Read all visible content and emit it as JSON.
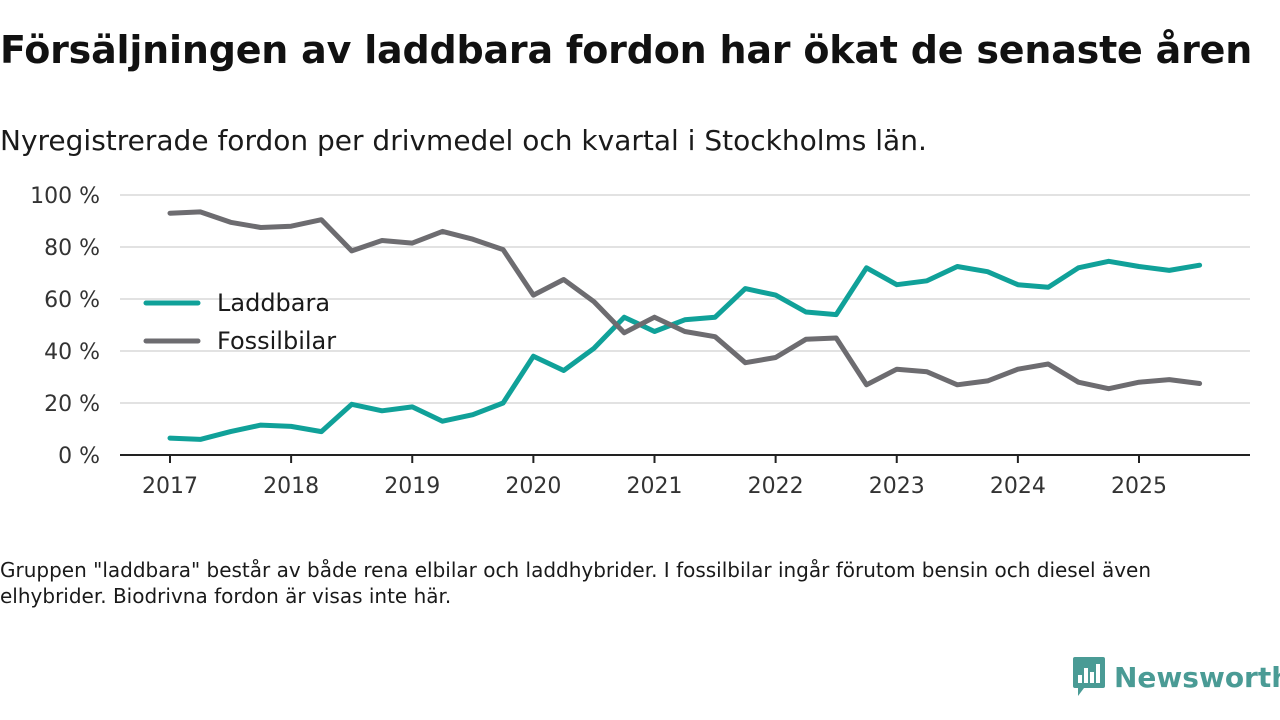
{
  "header": {
    "title": "Försäljningen av laddbara fordon har ökat de senaste åren",
    "subtitle": "Nyregistrerade fordon per drivmedel och kvartal i Stockholms län."
  },
  "footnote": "Gruppen \"laddbara\" består av både rena elbilar och laddhybrider. I fossilbilar ingår förutom bensin och diesel även elhybrider. Biodrivna fordon är visas inte här.",
  "brand": {
    "name": "Newsworthy",
    "icon": "newsworthy-logo-icon",
    "color": "#4a9b95"
  },
  "chart_data": {
    "type": "line",
    "x_start": 2017.0,
    "x_step": 0.25,
    "xlim": [
      2016.6,
      2026.0
    ],
    "ylim": [
      0,
      100
    ],
    "yticks": [
      0,
      20,
      40,
      60,
      80,
      100
    ],
    "ytick_labels": [
      "0 %",
      "20 %",
      "40 %",
      "60 %",
      "80 %",
      "100 %"
    ],
    "xticks": [
      2017,
      2018,
      2019,
      2020,
      2021,
      2022,
      2023,
      2024,
      2025
    ],
    "xtick_labels": [
      "2017",
      "2018",
      "2019",
      "2020",
      "2021",
      "2022",
      "2023",
      "2024",
      "2025"
    ],
    "grid": true,
    "legend_position": "left",
    "series": [
      {
        "name": "Laddbara",
        "color": "#10a199",
        "values": [
          6.5,
          6,
          9,
          11.5,
          11,
          9,
          19.5,
          17,
          18.5,
          13,
          15.5,
          20,
          38,
          32.5,
          41,
          53,
          47.5,
          52,
          53,
          64,
          61.5,
          55,
          54,
          72,
          65.5,
          67,
          72.5,
          70.5,
          65.5,
          64.5,
          72,
          74.5,
          72.5,
          71,
          73
        ]
      },
      {
        "name": "Fossilbilar",
        "color": "#6d6c70",
        "values": [
          93,
          93.5,
          89.5,
          87.5,
          88,
          90.5,
          78.5,
          82.5,
          81.5,
          86,
          83,
          79,
          61.5,
          67.5,
          59,
          47,
          53,
          47.5,
          45.5,
          35.5,
          37.5,
          44.5,
          45,
          27,
          33,
          32,
          27,
          28.5,
          33,
          35,
          28,
          25.5,
          28,
          29,
          27.5
        ]
      }
    ]
  }
}
